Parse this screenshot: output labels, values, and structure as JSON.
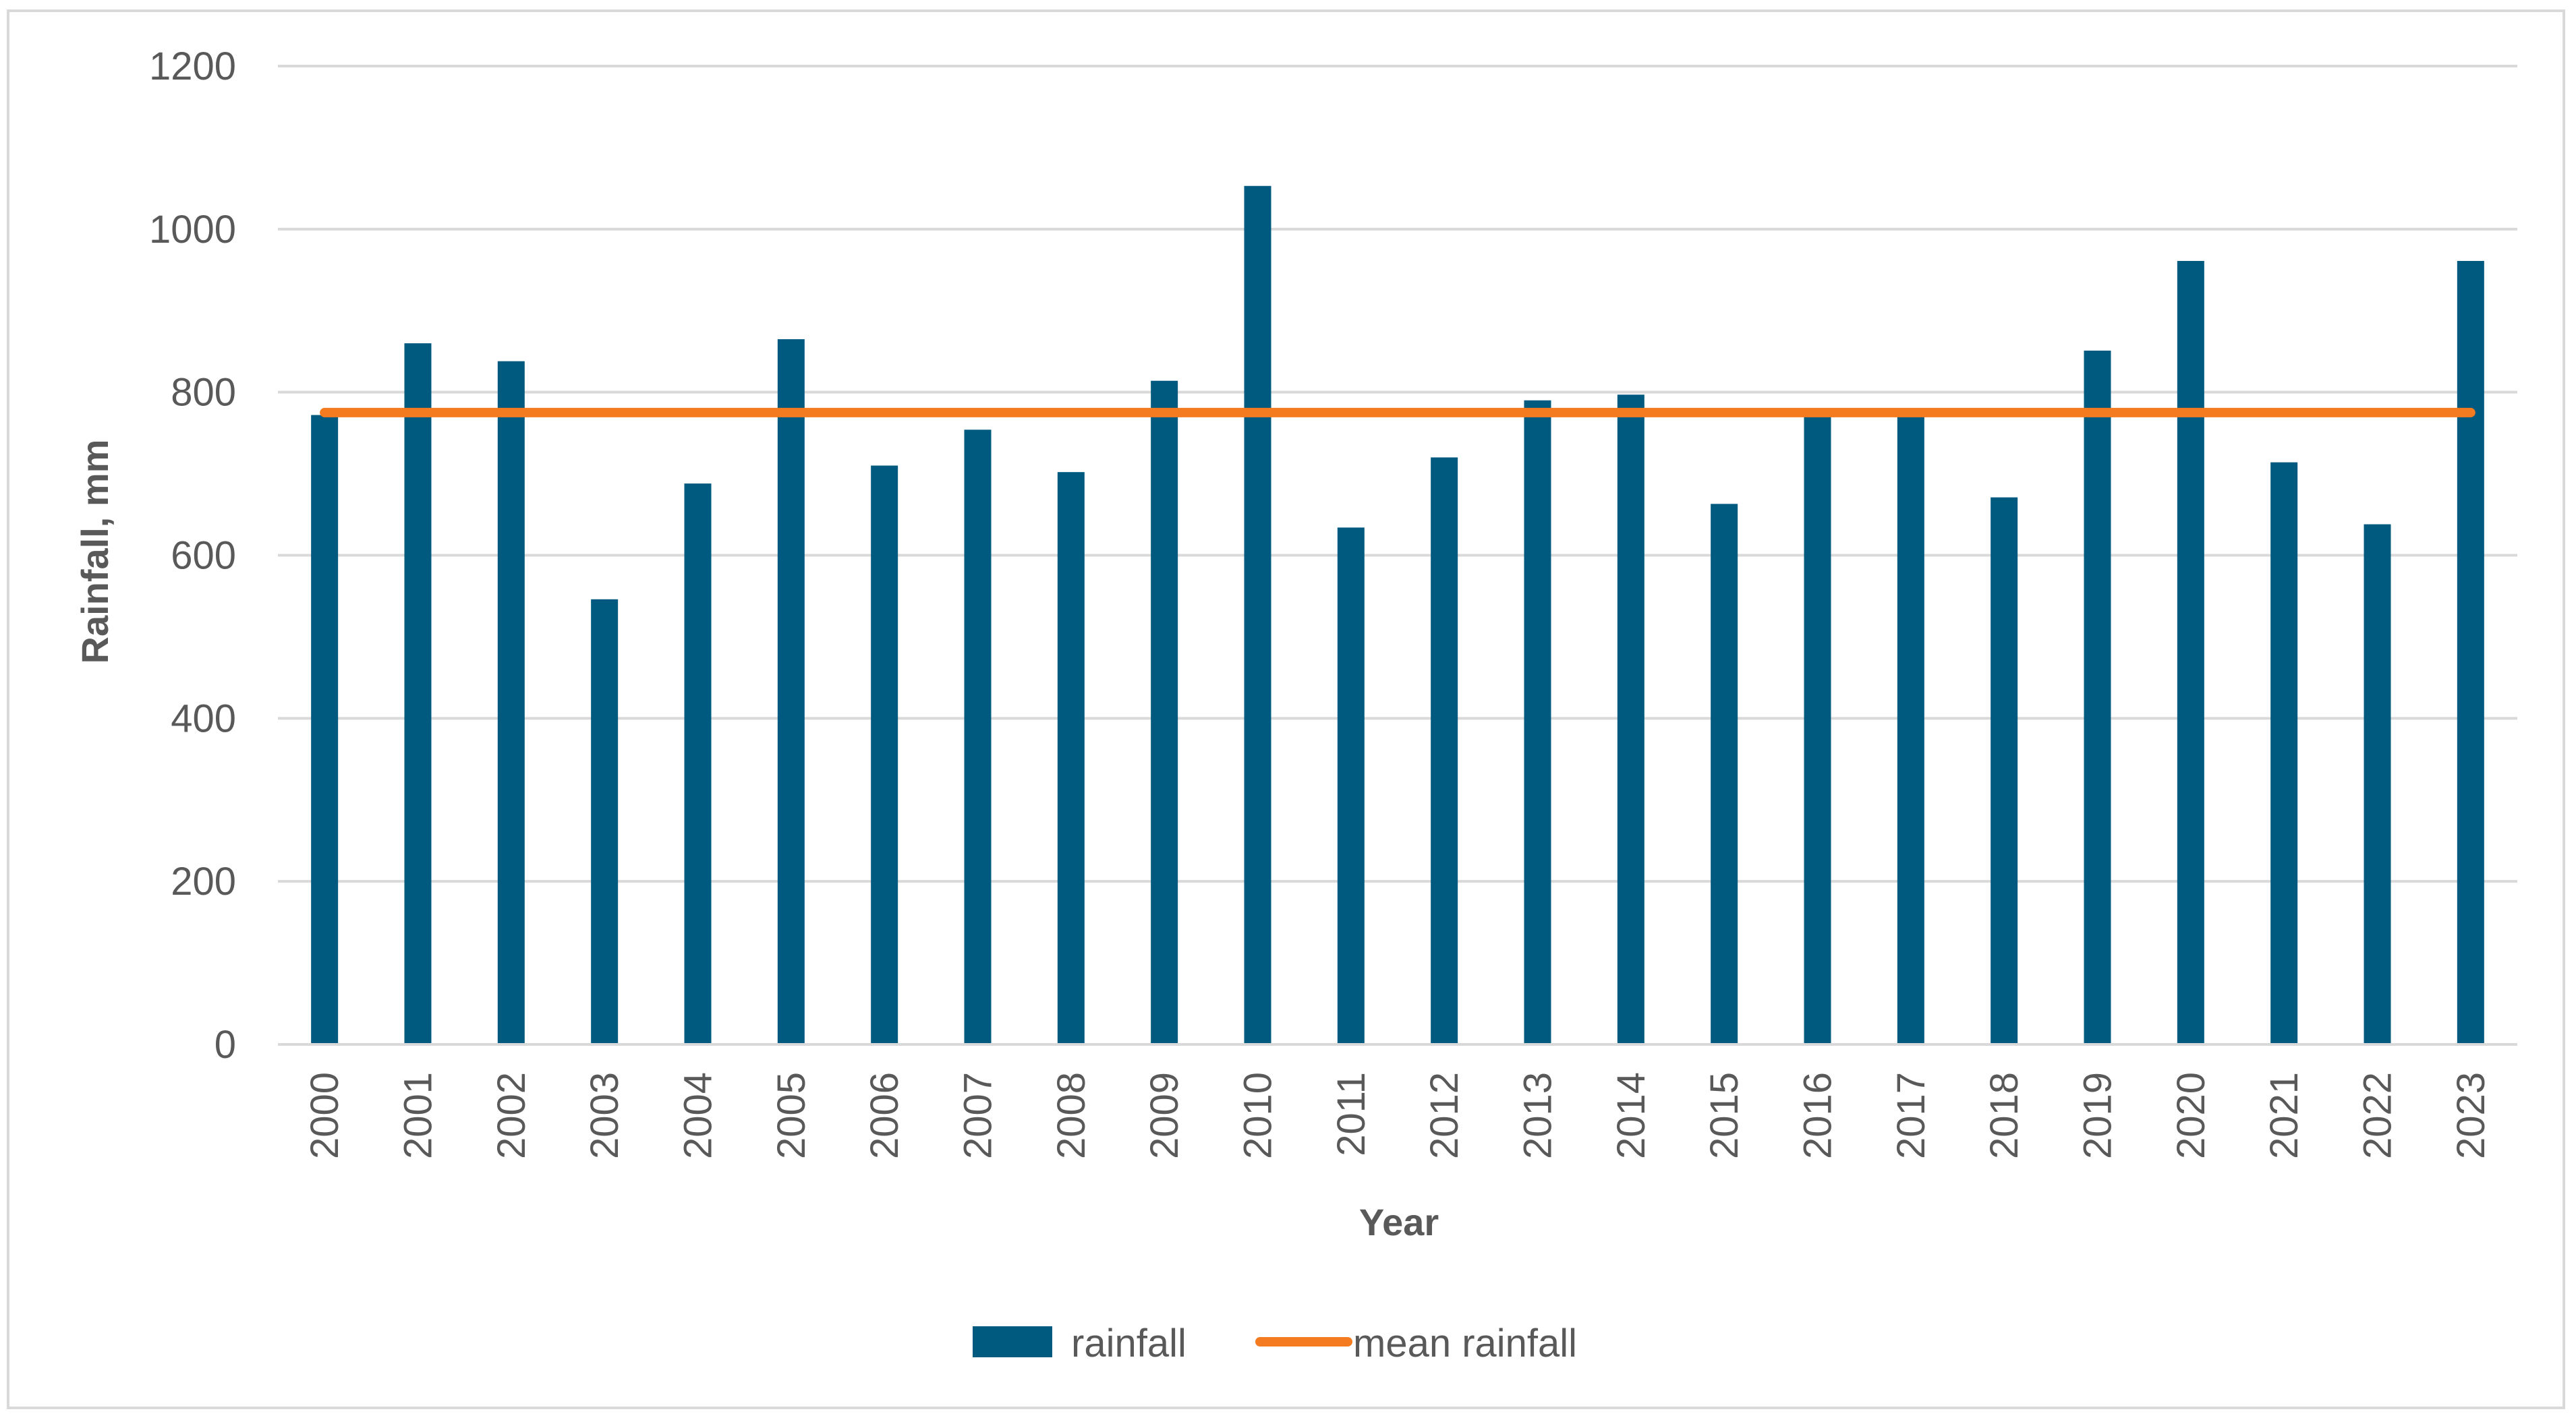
{
  "chart_data": {
    "type": "bar",
    "title": "",
    "xlabel": "Year",
    "ylabel": "Rainfall, mm",
    "ylim": [
      0,
      1200
    ],
    "yticks": [
      0,
      200,
      400,
      600,
      800,
      1000,
      1200
    ],
    "grid": true,
    "legend_position": "bottom",
    "categories": [
      "2000",
      "2001",
      "2002",
      "2003",
      "2004",
      "2005",
      "2006",
      "2007",
      "2008",
      "2009",
      "2010",
      "2011",
      "2012",
      "2013",
      "2014",
      "2015",
      "2016",
      "2017",
      "2018",
      "2019",
      "2020",
      "2021",
      "2022",
      "2023"
    ],
    "series": [
      {
        "name": "rainfall",
        "kind": "bar",
        "color": "#005A7F",
        "values": [
          772,
          860,
          838,
          546,
          688,
          865,
          710,
          754,
          702,
          814,
          1053,
          634,
          720,
          790,
          797,
          663,
          775,
          773,
          671,
          851,
          961,
          714,
          638,
          961
        ]
      },
      {
        "name": "mean rainfall",
        "kind": "line",
        "color": "#F47B20",
        "values": [
          775,
          775,
          775,
          775,
          775,
          775,
          775,
          775,
          775,
          775,
          775,
          775,
          775,
          775,
          775,
          775,
          775,
          775,
          775,
          775,
          775,
          775,
          775,
          775
        ]
      }
    ]
  }
}
